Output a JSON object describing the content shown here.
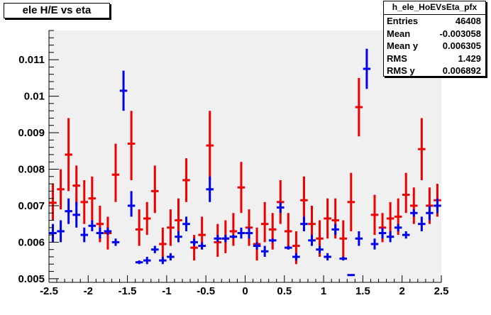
{
  "chart_data": {
    "type": "scatter",
    "title": "ele H/E vs eta",
    "xlim": [
      -2.5,
      2.5
    ],
    "ylim": [
      0.0049,
      0.0118
    ],
    "x_ticks": [
      "-2.5",
      "-2",
      "-1.5",
      "-1",
      "-0.5",
      "0",
      "0.5",
      "1",
      "1.5",
      "2",
      "2.5"
    ],
    "y_ticks": [
      "0.005",
      "0.006",
      "0.007",
      "0.008",
      "0.009",
      "0.01",
      "0.011"
    ],
    "grid": false,
    "stats": {
      "name": "h_ele_HoEVsEta_pfx",
      "rows": [
        {
          "label": "Entries",
          "value": "46408"
        },
        {
          "label": "Mean",
          "value": "-0.003058"
        },
        {
          "label": "Mean y",
          "value": "0.006305"
        },
        {
          "label": "RMS",
          "value": "1.429"
        },
        {
          "label": "RMS y",
          "value": "0.006892"
        }
      ]
    },
    "series": [
      {
        "color": "#ee0000",
        "points": [
          {
            "x": -2.45,
            "y": 0.00708,
            "ylo": 0.0066,
            "yhi": 0.0076
          },
          {
            "x": -2.35,
            "y": 0.00745,
            "ylo": 0.0069,
            "yhi": 0.008
          },
          {
            "x": -2.25,
            "y": 0.0084,
            "ylo": 0.0074,
            "yhi": 0.0094
          },
          {
            "x": -2.15,
            "y": 0.00755,
            "ylo": 0.007,
            "yhi": 0.0081
          },
          {
            "x": -2.05,
            "y": 0.0071,
            "ylo": 0.0065,
            "yhi": 0.0077
          },
          {
            "x": -1.95,
            "y": 0.0072,
            "ylo": 0.0066,
            "yhi": 0.0078
          },
          {
            "x": -1.85,
            "y": 0.0065,
            "ylo": 0.006,
            "yhi": 0.007
          },
          {
            "x": -1.75,
            "y": 0.00625,
            "ylo": 0.0058,
            "yhi": 0.0067
          },
          {
            "x": -1.65,
            "y": 0.00785,
            "ylo": 0.0071,
            "yhi": 0.0087
          },
          {
            "x": -1.45,
            "y": 0.0087,
            "ylo": 0.0077,
            "yhi": 0.0096
          },
          {
            "x": -1.35,
            "y": 0.00635,
            "ylo": 0.0059,
            "yhi": 0.0069
          },
          {
            "x": -1.25,
            "y": 0.00665,
            "ylo": 0.0062,
            "yhi": 0.0071
          },
          {
            "x": -1.15,
            "y": 0.0074,
            "ylo": 0.0068,
            "yhi": 0.0081
          },
          {
            "x": -1.05,
            "y": 0.00595,
            "ylo": 0.0055,
            "yhi": 0.0064
          },
          {
            "x": -0.95,
            "y": 0.0064,
            "ylo": 0.0059,
            "yhi": 0.0069
          },
          {
            "x": -0.85,
            "y": 0.0066,
            "ylo": 0.006,
            "yhi": 0.0072
          },
          {
            "x": -0.75,
            "y": 0.0077,
            "ylo": 0.0071,
            "yhi": 0.0083
          },
          {
            "x": -0.65,
            "y": 0.00585,
            "ylo": 0.0055,
            "yhi": 0.0062
          },
          {
            "x": -0.55,
            "y": 0.0062,
            "ylo": 0.0058,
            "yhi": 0.0067
          },
          {
            "x": -0.45,
            "y": 0.00865,
            "ylo": 0.0077,
            "yhi": 0.0096
          },
          {
            "x": -0.35,
            "y": 0.006,
            "ylo": 0.0056,
            "yhi": 0.0065
          },
          {
            "x": -0.25,
            "y": 0.0061,
            "ylo": 0.0057,
            "yhi": 0.0066
          },
          {
            "x": -0.15,
            "y": 0.0063,
            "ylo": 0.0059,
            "yhi": 0.0068
          },
          {
            "x": -0.05,
            "y": 0.0075,
            "ylo": 0.0068,
            "yhi": 0.0082
          },
          {
            "x": 0.05,
            "y": 0.0064,
            "ylo": 0.0059,
            "yhi": 0.0069
          },
          {
            "x": 0.15,
            "y": 0.00595,
            "ylo": 0.0055,
            "yhi": 0.0064
          },
          {
            "x": 0.25,
            "y": 0.0065,
            "ylo": 0.006,
            "yhi": 0.0071
          },
          {
            "x": 0.35,
            "y": 0.00635,
            "ylo": 0.0058,
            "yhi": 0.0068
          },
          {
            "x": 0.45,
            "y": 0.0071,
            "ylo": 0.0065,
            "yhi": 0.0077
          },
          {
            "x": 0.55,
            "y": 0.0063,
            "ylo": 0.0058,
            "yhi": 0.0068
          },
          {
            "x": 0.65,
            "y": 0.0059,
            "ylo": 0.0054,
            "yhi": 0.0063
          },
          {
            "x": 0.75,
            "y": 0.00715,
            "ylo": 0.0065,
            "yhi": 0.0078
          },
          {
            "x": 0.85,
            "y": 0.0065,
            "ylo": 0.006,
            "yhi": 0.007
          },
          {
            "x": 0.95,
            "y": 0.0061,
            "ylo": 0.0056,
            "yhi": 0.0066
          },
          {
            "x": 1.05,
            "y": 0.00665,
            "ylo": 0.0061,
            "yhi": 0.0072
          },
          {
            "x": 1.15,
            "y": 0.0066,
            "ylo": 0.0061,
            "yhi": 0.0072
          },
          {
            "x": 1.25,
            "y": 0.0061,
            "ylo": 0.0055,
            "yhi": 0.0066
          },
          {
            "x": 1.35,
            "y": 0.0071,
            "ylo": 0.0063,
            "yhi": 0.0079
          },
          {
            "x": 1.45,
            "y": 0.0097,
            "ylo": 0.0089,
            "yhi": 0.0105
          },
          {
            "x": 1.65,
            "y": 0.00675,
            "ylo": 0.0062,
            "yhi": 0.0073
          },
          {
            "x": 1.75,
            "y": 0.0064,
            "ylo": 0.006,
            "yhi": 0.0068
          },
          {
            "x": 1.85,
            "y": 0.00665,
            "ylo": 0.0061,
            "yhi": 0.0071
          },
          {
            "x": 1.95,
            "y": 0.0067,
            "ylo": 0.0062,
            "yhi": 0.0072
          },
          {
            "x": 2.05,
            "y": 0.0073,
            "ylo": 0.0068,
            "yhi": 0.0079
          },
          {
            "x": 2.15,
            "y": 0.007,
            "ylo": 0.0065,
            "yhi": 0.0075
          },
          {
            "x": 2.25,
            "y": 0.00855,
            "ylo": 0.0077,
            "yhi": 0.0094
          },
          {
            "x": 2.35,
            "y": 0.007,
            "ylo": 0.0065,
            "yhi": 0.0075
          },
          {
            "x": 2.45,
            "y": 0.00715,
            "ylo": 0.0067,
            "yhi": 0.0076
          }
        ]
      },
      {
        "color": "#0000ee",
        "points": [
          {
            "x": -2.45,
            "y": 0.00625,
            "ylo": 0.006,
            "yhi": 0.0065
          },
          {
            "x": -2.35,
            "y": 0.0063,
            "ylo": 0.006,
            "yhi": 0.0066
          },
          {
            "x": -2.25,
            "y": 0.00685,
            "ylo": 0.0065,
            "yhi": 0.0072
          },
          {
            "x": -2.15,
            "y": 0.00675,
            "ylo": 0.0064,
            "yhi": 0.0071
          },
          {
            "x": -2.05,
            "y": 0.0062,
            "ylo": 0.006,
            "yhi": 0.0064
          },
          {
            "x": -1.95,
            "y": 0.00645,
            "ylo": 0.0063,
            "yhi": 0.0066
          },
          {
            "x": -1.85,
            "y": 0.00625,
            "ylo": 0.0061,
            "yhi": 0.0064
          },
          {
            "x": -1.75,
            "y": 0.0063,
            "ylo": 0.0062,
            "yhi": 0.0064
          },
          {
            "x": -1.65,
            "y": 0.006,
            "ylo": 0.0059,
            "yhi": 0.0061
          },
          {
            "x": -1.55,
            "y": 0.01015,
            "ylo": 0.0096,
            "yhi": 0.0107
          },
          {
            "x": -1.45,
            "y": 0.007,
            "ylo": 0.0067,
            "yhi": 0.0074
          },
          {
            "x": -1.35,
            "y": 0.00545,
            "ylo": 0.0054,
            "yhi": 0.0055
          },
          {
            "x": -1.25,
            "y": 0.0055,
            "ylo": 0.0054,
            "yhi": 0.0056
          },
          {
            "x": -1.15,
            "y": 0.0058,
            "ylo": 0.0057,
            "yhi": 0.0059
          },
          {
            "x": -1.05,
            "y": 0.0055,
            "ylo": 0.0054,
            "yhi": 0.0056
          },
          {
            "x": -0.95,
            "y": 0.0056,
            "ylo": 0.0055,
            "yhi": 0.0057
          },
          {
            "x": -0.85,
            "y": 0.00615,
            "ylo": 0.006,
            "yhi": 0.0063
          },
          {
            "x": -0.75,
            "y": 0.0065,
            "ylo": 0.0063,
            "yhi": 0.0067
          },
          {
            "x": -0.65,
            "y": 0.006,
            "ylo": 0.0059,
            "yhi": 0.0061
          },
          {
            "x": -0.55,
            "y": 0.0059,
            "ylo": 0.0058,
            "yhi": 0.006
          },
          {
            "x": -0.45,
            "y": 0.00745,
            "ylo": 0.0071,
            "yhi": 0.0078
          },
          {
            "x": -0.35,
            "y": 0.0061,
            "ylo": 0.006,
            "yhi": 0.0062
          },
          {
            "x": -0.25,
            "y": 0.0061,
            "ylo": 0.006,
            "yhi": 0.0062
          },
          {
            "x": -0.15,
            "y": 0.00615,
            "ylo": 0.0061,
            "yhi": 0.0062
          },
          {
            "x": -0.05,
            "y": 0.00625,
            "ylo": 0.0061,
            "yhi": 0.0064
          },
          {
            "x": 0.05,
            "y": 0.00625,
            "ylo": 0.0061,
            "yhi": 0.0064
          },
          {
            "x": 0.15,
            "y": 0.0059,
            "ylo": 0.0058,
            "yhi": 0.006
          },
          {
            "x": 0.25,
            "y": 0.00575,
            "ylo": 0.0056,
            "yhi": 0.0059
          },
          {
            "x": 0.35,
            "y": 0.00605,
            "ylo": 0.006,
            "yhi": 0.0061
          },
          {
            "x": 0.45,
            "y": 0.00695,
            "ylo": 0.0068,
            "yhi": 0.0071
          },
          {
            "x": 0.55,
            "y": 0.00585,
            "ylo": 0.0058,
            "yhi": 0.0059
          },
          {
            "x": 0.65,
            "y": 0.0056,
            "ylo": 0.0055,
            "yhi": 0.0057
          },
          {
            "x": 0.75,
            "y": 0.0065,
            "ylo": 0.0063,
            "yhi": 0.0067
          },
          {
            "x": 0.85,
            "y": 0.00605,
            "ylo": 0.0059,
            "yhi": 0.0062
          },
          {
            "x": 0.95,
            "y": 0.0058,
            "ylo": 0.0057,
            "yhi": 0.0059
          },
          {
            "x": 1.05,
            "y": 0.0056,
            "ylo": 0.0055,
            "yhi": 0.0057
          },
          {
            "x": 1.15,
            "y": 0.00635,
            "ylo": 0.0062,
            "yhi": 0.0065
          },
          {
            "x": 1.25,
            "y": 0.00555,
            "ylo": 0.0055,
            "yhi": 0.0056
          },
          {
            "x": 1.35,
            "y": 0.0051,
            "ylo": 0.00508,
            "yhi": 0.00512
          },
          {
            "x": 1.45,
            "y": 0.0061,
            "ylo": 0.0059,
            "yhi": 0.0063
          },
          {
            "x": 1.55,
            "y": 0.01075,
            "ylo": 0.0102,
            "yhi": 0.0113
          },
          {
            "x": 1.65,
            "y": 0.00595,
            "ylo": 0.0058,
            "yhi": 0.0061
          },
          {
            "x": 1.75,
            "y": 0.00625,
            "ylo": 0.0061,
            "yhi": 0.0064
          },
          {
            "x": 1.85,
            "y": 0.00615,
            "ylo": 0.006,
            "yhi": 0.0063
          },
          {
            "x": 1.95,
            "y": 0.0064,
            "ylo": 0.0063,
            "yhi": 0.0065
          },
          {
            "x": 2.05,
            "y": 0.0062,
            "ylo": 0.0061,
            "yhi": 0.0063
          },
          {
            "x": 2.15,
            "y": 0.0068,
            "ylo": 0.0067,
            "yhi": 0.0069
          },
          {
            "x": 2.25,
            "y": 0.0065,
            "ylo": 0.0063,
            "yhi": 0.0067
          },
          {
            "x": 2.35,
            "y": 0.0068,
            "ylo": 0.0066,
            "yhi": 0.007
          },
          {
            "x": 2.45,
            "y": 0.007,
            "ylo": 0.0068,
            "yhi": 0.0072
          }
        ]
      }
    ]
  }
}
